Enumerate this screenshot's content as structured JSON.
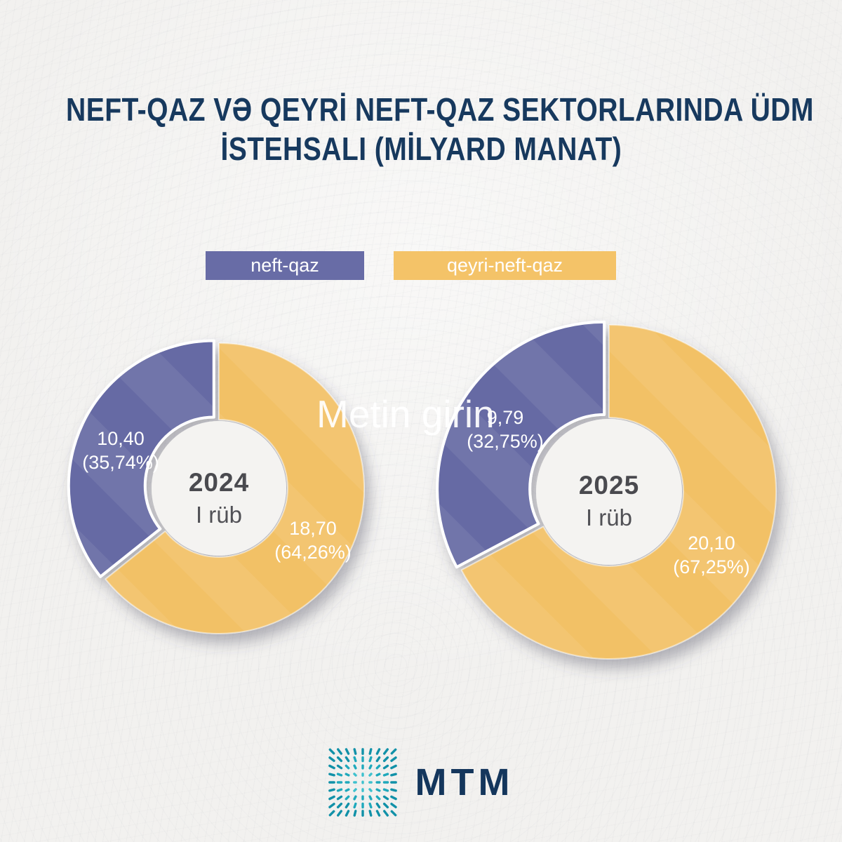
{
  "title": {
    "line1": "NEFT-QAZ VƏ QEYRİ NEFT-QAZ SEKTORLARINDA ÜDM",
    "line2": "İSTEHSALI (MİLYARD MANAT)"
  },
  "legend": {
    "position": "top",
    "items": [
      {
        "label": "neft-qaz",
        "color": "#686ca6"
      },
      {
        "label": "qeyri-neft-qaz",
        "color": "#f4c368"
      }
    ]
  },
  "watermark": {
    "text": "Metin girin"
  },
  "chart_data": [
    {
      "type": "pie",
      "subtype": "donut",
      "period": {
        "year": "2024",
        "quarter": "I rüb"
      },
      "units": "milyard manat",
      "start_angle_deg": 0,
      "direction": "clockwise",
      "slices": [
        {
          "name": "qeyri-neft-qaz",
          "value": 18.7,
          "percent": 64.26,
          "label_value": "18,70",
          "label_percent": "(64,26%)",
          "color": "#f2c166",
          "exploded": false
        },
        {
          "name": "neft-qaz",
          "value": 10.4,
          "percent": 35.74,
          "label_value": "10,40",
          "label_percent": "(35,74%)",
          "color": "#666aa4",
          "exploded": true
        }
      ]
    },
    {
      "type": "pie",
      "subtype": "donut",
      "period": {
        "year": "2025",
        "quarter": "I rüb"
      },
      "units": "milyard manat",
      "start_angle_deg": 0,
      "direction": "clockwise",
      "slices": [
        {
          "name": "qeyri-neft-qaz",
          "value": 20.1,
          "percent": 67.25,
          "label_value": "20,10",
          "label_percent": "(67,25%)",
          "color": "#f2c166",
          "exploded": false
        },
        {
          "name": "neft-qaz",
          "value": 9.79,
          "percent": 32.75,
          "label_value": "9,79",
          "label_percent": "(32,75%)",
          "color": "#666aa4",
          "exploded": true
        }
      ]
    }
  ],
  "footer": {
    "logo_text": "MTM"
  }
}
